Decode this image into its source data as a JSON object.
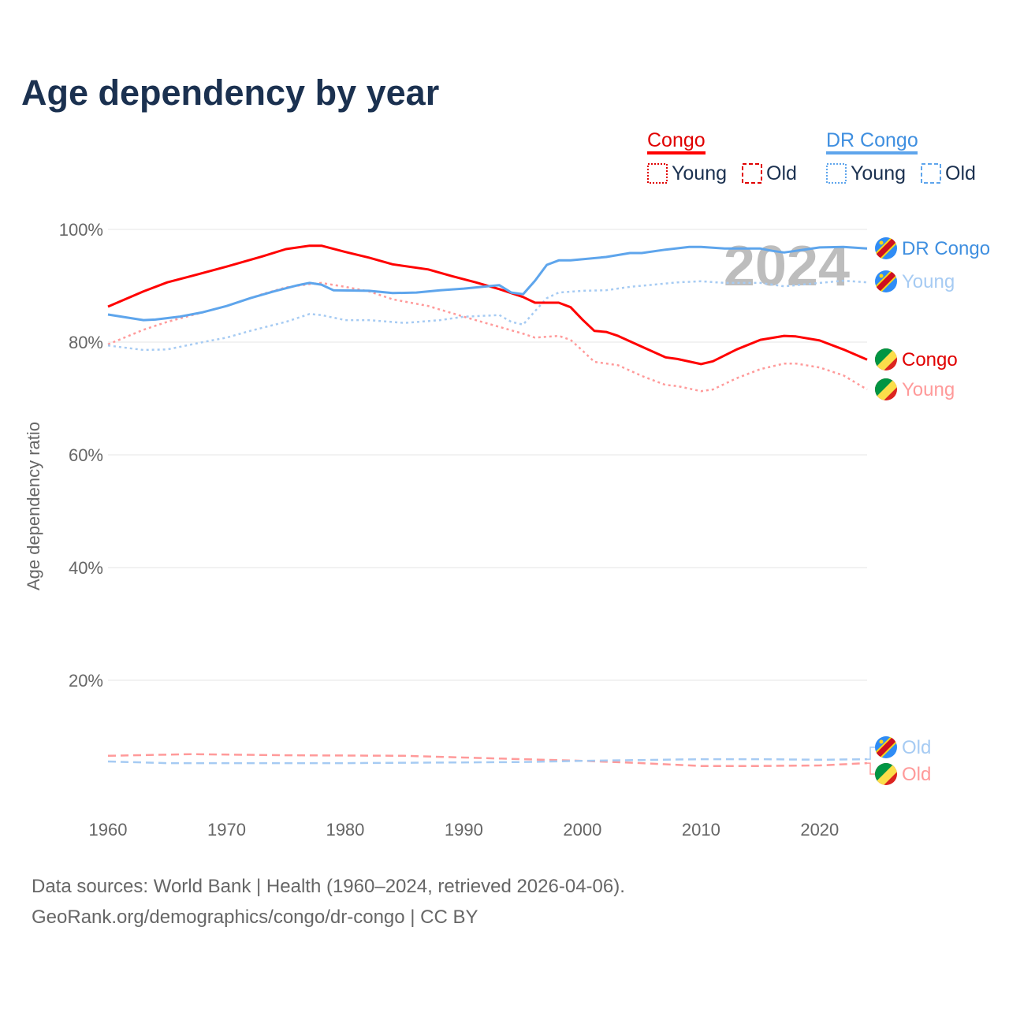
{
  "chart_data": {
    "type": "line",
    "title": "Age dependency by year",
    "xlabel": "",
    "ylabel": "Age dependency ratio",
    "xlim": [
      1960,
      2024
    ],
    "ylim": [
      0,
      100
    ],
    "x_ticks": [
      "1960",
      "1970",
      "1980",
      "1990",
      "2000",
      "2010",
      "2020"
    ],
    "y_ticks": [
      {
        "v": 20,
        "label": "20%"
      },
      {
        "v": 40,
        "label": "40%"
      },
      {
        "v": 60,
        "label": "60%"
      },
      {
        "v": 80,
        "label": "80%"
      },
      {
        "v": 100,
        "label": "100%"
      }
    ],
    "grid": true,
    "year_watermark": "2024",
    "legend": {
      "placement": "top-right",
      "groups": [
        {
          "name": "Congo",
          "young": "Young",
          "old": "Old",
          "color": "#ff0000",
          "light": "#ff9a9a"
        },
        {
          "name": "DR Congo",
          "young": "Young",
          "old": "Old",
          "color": "#5ea5ec",
          "light": "#a6cbf3"
        }
      ]
    },
    "series": [
      {
        "id": "congo-total",
        "name": "Congo",
        "label": "Congo",
        "color": "#ff0000",
        "style": "solid",
        "width": 3,
        "x": [
          1960,
          1963,
          1965,
          1967,
          1970,
          1973,
          1975,
          1977,
          1978,
          1980,
          1982,
          1984,
          1987,
          1989,
          1991,
          1993,
          1995,
          1996,
          1998,
          1999,
          2000,
          2001,
          2002,
          2003,
          2005,
          2007,
          2008,
          2010,
          2011,
          2013,
          2015,
          2017,
          2018,
          2020,
          2022,
          2024
        ],
        "y": [
          86.3,
          89,
          90.6,
          91.7,
          93.4,
          95.2,
          96.5,
          97.1,
          97.1,
          96,
          95,
          93.8,
          92.9,
          91.7,
          90.6,
          89.4,
          88,
          87,
          87,
          86.2,
          84,
          82,
          81.8,
          81.1,
          79.2,
          77.3,
          77,
          76.1,
          76.6,
          78.7,
          80.4,
          81.1,
          81,
          80.3,
          78.7,
          76.9
        ]
      },
      {
        "id": "congo-young",
        "name": "Congo Young",
        "label": "Young",
        "color": "#ff9a9a",
        "style": "dotted",
        "width": 2.5,
        "x": [
          1960,
          1963,
          1965,
          1968,
          1970,
          1973,
          1975,
          1977,
          1978,
          1980,
          1982,
          1984,
          1987,
          1990,
          1993,
          1995,
          1996,
          1998,
          1999,
          2000,
          2001,
          2003,
          2005,
          2007,
          2008,
          2010,
          2011,
          2013,
          2015,
          2017,
          2018,
          2020,
          2022,
          2024
        ],
        "y": [
          79.6,
          82.2,
          83.6,
          85.3,
          86.4,
          88.5,
          89.7,
          90.3,
          90.5,
          89.8,
          89,
          87.6,
          86.4,
          84.5,
          82.7,
          81.5,
          80.8,
          81.1,
          80.4,
          78.5,
          76.5,
          75.9,
          74,
          72.4,
          72.2,
          71.3,
          71.6,
          73.6,
          75.2,
          76.2,
          76.2,
          75.5,
          74.1,
          71.6
        ]
      },
      {
        "id": "congo-old",
        "name": "Congo Old",
        "label": "Old",
        "color": "#ff9a9a",
        "style": "dashed",
        "width": 2.5,
        "x": [
          1960,
          1967,
          1975,
          1985,
          1990,
          2000,
          2005,
          2010,
          2015,
          2020,
          2024
        ],
        "y": [
          6.6,
          6.9,
          6.7,
          6.6,
          6.3,
          5.7,
          5.3,
          4.8,
          4.8,
          4.9,
          5.3
        ]
      },
      {
        "id": "drc-total",
        "name": "DR Congo",
        "label": "DR Congo",
        "color": "#5ea5ec",
        "style": "solid",
        "width": 3,
        "x": [
          1960,
          1963,
          1964,
          1966,
          1968,
          1970,
          1972,
          1974,
          1976,
          1977,
          1978,
          1979,
          1982,
          1984,
          1986,
          1988,
          1990,
          1993,
          1994,
          1995,
          1996,
          1997,
          1998,
          1999,
          2002,
          2004,
          2005,
          2007,
          2009,
          2010,
          2012,
          2015,
          2016,
          2017,
          2018,
          2020,
          2022,
          2024
        ],
        "y": [
          84.9,
          83.9,
          84,
          84.5,
          85.3,
          86.4,
          87.8,
          89,
          90.1,
          90.5,
          90.2,
          89.2,
          89.1,
          88.7,
          88.8,
          89.2,
          89.5,
          90.1,
          88.8,
          88.5,
          90.9,
          93.7,
          94.5,
          94.5,
          95.1,
          95.8,
          95.8,
          96.4,
          96.9,
          96.9,
          96.6,
          96.6,
          96.2,
          95.9,
          96.2,
          96.8,
          96.9,
          96.6
        ]
      },
      {
        "id": "drc-young",
        "name": "DR Congo Young",
        "label": "Young",
        "color": "#a6cbf3",
        "style": "dotted",
        "width": 2.5,
        "x": [
          1960,
          1963,
          1965,
          1968,
          1970,
          1972,
          1975,
          1977,
          1978,
          1980,
          1982,
          1985,
          1988,
          1990,
          1993,
          1994,
          1995,
          1996,
          1997,
          1998,
          2000,
          2002,
          2004,
          2006,
          2008,
          2010,
          2012,
          2015,
          2017,
          2018,
          2020,
          2022,
          2024
        ],
        "y": [
          79.4,
          78.6,
          78.7,
          80,
          80.8,
          82,
          83.6,
          85,
          84.8,
          83.9,
          83.9,
          83.4,
          83.9,
          84.5,
          84.8,
          83.6,
          83.1,
          85.5,
          87.8,
          88.8,
          89.1,
          89.2,
          89.8,
          90.2,
          90.6,
          90.8,
          90.5,
          90.5,
          89.9,
          90.1,
          90.5,
          90.9,
          90.6
        ]
      },
      {
        "id": "drc-old",
        "name": "DR Congo Old",
        "label": "Old",
        "color": "#a6cbf3",
        "style": "dashed",
        "width": 2.5,
        "x": [
          1960,
          1965,
          1980,
          1995,
          2000,
          2010,
          2015,
          2020,
          2024
        ],
        "y": [
          5.6,
          5.3,
          5.3,
          5.5,
          5.7,
          6.0,
          6.0,
          5.9,
          6.0
        ]
      }
    ]
  },
  "footer": {
    "line1": "Data sources: World Bank | Health (1960–2024, retrieved 2026-04-06).",
    "line2": "GeoRank.org/demographics/congo/dr-congo | CC BY"
  }
}
